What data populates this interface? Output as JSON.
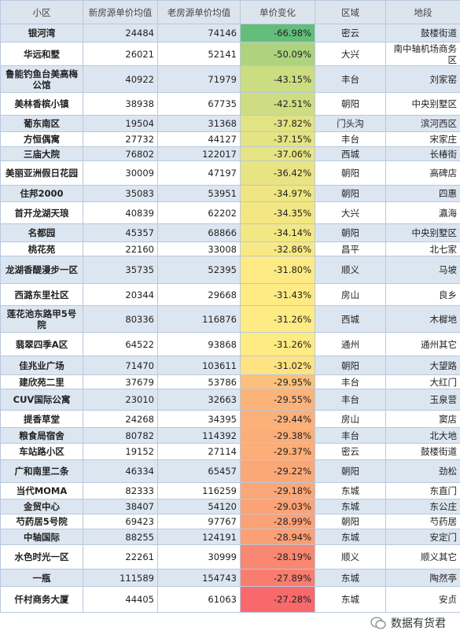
{
  "table": {
    "header": [
      "小区",
      "新房源单价均值",
      "老房源单价均值",
      "单价变化",
      "区域",
      "地段"
    ],
    "rows": [
      [
        "银河湾",
        "24484",
        "74146",
        "-66.98%",
        "密云",
        "鼓楼街道"
      ],
      [
        "华远和墅",
        "26021",
        "52141",
        "-50.09%",
        "大兴",
        "南中轴机场商务区"
      ],
      [
        "鲁能钓鱼台美高梅公馆",
        "40922",
        "71979",
        "-43.15%",
        "丰台",
        "刘家窑"
      ],
      [
        "美林香槟小镇",
        "38938",
        "67735",
        "-42.51%",
        "朝阳",
        "中央别墅区"
      ],
      [
        "葡东南区",
        "19504",
        "31368",
        "-37.82%",
        "门头沟",
        "滨河西区"
      ],
      [
        "方恒偶寓",
        "27732",
        "44127",
        "-37.15%",
        "丰台",
        "宋家庄"
      ],
      [
        "三庙大院",
        "76802",
        "122017",
        "-37.06%",
        "西城",
        "长椿街"
      ],
      [
        "美丽亚洲假日花园",
        "30009",
        "47197",
        "-36.42%",
        "朝阳",
        "高碑店"
      ],
      [
        "住邦2000",
        "35083",
        "53951",
        "-34.97%",
        "朝阳",
        "四惠"
      ],
      [
        "首开龙湖天琅",
        "40839",
        "62202",
        "-34.35%",
        "大兴",
        "瀛海"
      ],
      [
        "名都园",
        "45357",
        "68866",
        "-34.14%",
        "朝阳",
        "中央别墅区"
      ],
      [
        "桃花苑",
        "22160",
        "33008",
        "-32.86%",
        "昌平",
        "北七家"
      ],
      [
        "龙湖香醍漫步一区",
        "35735",
        "52395",
        "-31.80%",
        "顺义",
        "马坡"
      ],
      [
        "西潞东里社区",
        "20344",
        "29668",
        "-31.43%",
        "房山",
        "良乡"
      ],
      [
        "莲花池东路甲5号院",
        "80336",
        "116876",
        "-31.26%",
        "西城",
        "木樨地"
      ],
      [
        "翡翠四季A区",
        "64522",
        "93868",
        "-31.26%",
        "通州",
        "通州其它"
      ],
      [
        "佳兆业广场",
        "71470",
        "103611",
        "-31.02%",
        "朝阳",
        "大望路"
      ],
      [
        "建欣苑二里",
        "37679",
        "53786",
        "-29.95%",
        "丰台",
        "大红门"
      ],
      [
        "CUV国际公寓",
        "23010",
        "32663",
        "-29.55%",
        "丰台",
        "玉泉营"
      ],
      [
        "提香草堂",
        "24268",
        "34395",
        "-29.44%",
        "房山",
        "窦店"
      ],
      [
        "粮食局宿舍",
        "80782",
        "114392",
        "-29.38%",
        "丰台",
        "北大地"
      ],
      [
        "车站路小区",
        "19152",
        "27114",
        "-29.37%",
        "密云",
        "鼓楼街道"
      ],
      [
        "广和南里二条",
        "46334",
        "65457",
        "-29.22%",
        "朝阳",
        "劲松"
      ],
      [
        "当代MOMA",
        "82333",
        "116259",
        "-29.18%",
        "东城",
        "东直门"
      ],
      [
        "金贸中心",
        "38407",
        "54120",
        "-29.03%",
        "东城",
        "东公庄"
      ],
      [
        "芍药居5号院",
        "69423",
        "97767",
        "-28.99%",
        "朝阳",
        "芍药居"
      ],
      [
        "中轴国际",
        "88255",
        "124191",
        "-28.94%",
        "东城",
        "安定门"
      ],
      [
        "水色时光一区",
        "22261",
        "30999",
        "-28.19%",
        "顺义",
        "顺义其它"
      ],
      [
        "一瓶",
        "111589",
        "154743",
        "-27.89%",
        "东城",
        "陶然亭"
      ],
      [
        "仟村商务大厦",
        "44405",
        "61063",
        "-27.28%",
        "东城",
        "安贞"
      ]
    ]
  },
  "watermark": "数据有货君"
}
